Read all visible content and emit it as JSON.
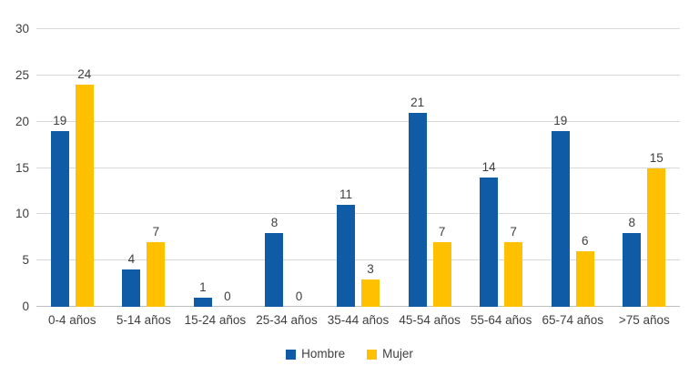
{
  "chart_data": {
    "type": "bar",
    "title": "",
    "xlabel": "",
    "ylabel": "",
    "categories": [
      "0-4 años",
      "5-14 años",
      "15-24 años",
      "25-34 años",
      "35-44 años",
      "45-54 años",
      "55-64 años",
      "65-74 años",
      ">75 años"
    ],
    "series": [
      {
        "name": "Hombre",
        "color": "#105BA6",
        "values": [
          19,
          4,
          1,
          8,
          11,
          21,
          14,
          19,
          8
        ]
      },
      {
        "name": "Mujer",
        "color": "#FFC000",
        "values": [
          24,
          7,
          0,
          0,
          3,
          7,
          7,
          6,
          15
        ]
      }
    ],
    "ylim": [
      0,
      30
    ],
    "yticks": [
      0,
      5,
      10,
      15,
      20,
      25,
      30
    ],
    "grid": true,
    "data_labels": true,
    "legend_position": "bottom"
  },
  "colors": {
    "background": "#FFFFFF",
    "gridline": "#D9D9D9",
    "axis_line": "#BFBFBF",
    "label_text": "#3F3F3F"
  }
}
